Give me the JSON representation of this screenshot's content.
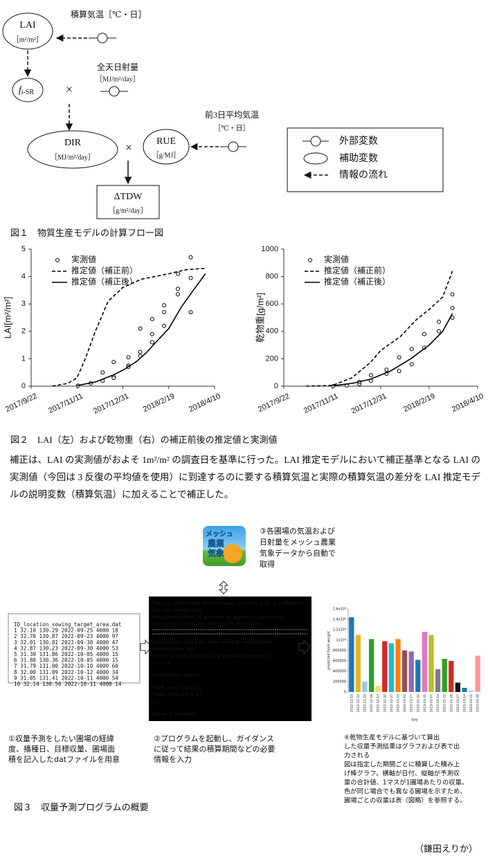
{
  "figure1": {
    "nodes": {
      "lai": {
        "label": "LAI",
        "unit": "［m²/m²］"
      },
      "fisr": {
        "label": "f",
        "subscript": "i-SR"
      },
      "dir": {
        "label": "DIR",
        "unit": "［MJ/m²/day］"
      },
      "rue": {
        "label": "RUE",
        "unit": "［g/MJ］"
      },
      "tdw": {
        "label": "ΔTDW",
        "unit": "［g/m²/day］"
      }
    },
    "inputs": {
      "temp_sum": "積算気温［℃・日］",
      "radiation": "全天日射量",
      "radiation_unit": "［MJ/m²/day］",
      "temp3": "前3日平均気温",
      "temp3_unit": "［℃・日］"
    },
    "times": "×",
    "legend": [
      "外部変数",
      "補助変数",
      "情報の流れ"
    ],
    "caption": "図１　物質生産モデルの計算フロー図"
  },
  "chart_data": [
    {
      "type": "line",
      "ylabel": "LAI[m²/m²]",
      "ylim": [
        0,
        5
      ],
      "yticks": [
        0,
        1,
        2,
        3,
        4,
        5
      ],
      "xlim": [
        "2017/9/22",
        "2018/4/10"
      ],
      "xticks": [
        "2017/9/22",
        "2017/11/11",
        "2017/12/31",
        "2018/2/19",
        "2018/4/10"
      ],
      "legend": "upper left",
      "grid": false,
      "series": [
        {
          "name": "実測値",
          "color": "#000",
          "marker": "circle",
          "line_style": "none",
          "x": [
            "2017/11/12",
            "2017/11/26",
            "2017/12/9",
            "2017/12/9",
            "2017/12/21",
            "2017/12/21",
            "2017/12/21",
            "2018/1/6",
            "2018/1/6",
            "2018/1/6",
            "2018/1/19",
            "2018/1/19",
            "2018/1/19",
            "2018/2/1",
            "2018/2/1",
            "2018/2/1",
            "2018/2/14",
            "2018/2/14",
            "2018/2/14",
            "2018/3/1",
            "2018/3/1",
            "2018/3/1",
            "2018/3/15",
            "2018/3/15",
            "2018/3/15"
          ],
          "values": [
            0.02,
            0.1,
            0.2,
            0.5,
            0.35,
            0.3,
            0.88,
            0.75,
            0.7,
            1.05,
            1.1,
            1.25,
            2.1,
            1.6,
            1.9,
            2.45,
            2.2,
            2.7,
            2.95,
            3.35,
            3.55,
            4.1,
            2.7,
            3.95,
            4.7
          ]
        },
        {
          "name": "推定値（補正前）",
          "color": "#000",
          "marker": "none",
          "line_style": "dashed",
          "x": [
            "2017/10/15",
            "2017/11/1",
            "2017/11/11",
            "2017/11/20",
            "2017/12/1",
            "2017/12/15",
            "2017/12/31",
            "2018/1/20",
            "2018/2/19",
            "2018/3/10",
            "2018/3/31"
          ],
          "values": [
            0,
            0.1,
            0.3,
            1,
            2,
            3.1,
            3.6,
            3.9,
            4.1,
            4.25,
            4.3
          ]
        },
        {
          "name": "推定値（補正後）",
          "color": "#000",
          "marker": "none",
          "line_style": "solid",
          "x": [
            "2017/11/11",
            "2017/12/1",
            "2017/12/20",
            "2018/1/1",
            "2018/1/15",
            "2018/1/25",
            "2018/2/5",
            "2018/2/19",
            "2018/3/5",
            "2018/3/20",
            "2018/3/31"
          ],
          "values": [
            0.02,
            0.15,
            0.4,
            0.6,
            0.9,
            1.2,
            1.6,
            2.1,
            2.9,
            3.6,
            4.1
          ]
        }
      ]
    },
    {
      "type": "line",
      "ylabel": "乾物重[g/m²]",
      "ylim": [
        0,
        1000
      ],
      "yticks": [
        0,
        200,
        400,
        600,
        800,
        1000
      ],
      "xlim": [
        "2017/9/22",
        "2018/4/10"
      ],
      "xticks": [
        "2017/9/22",
        "2017/11/11",
        "2017/12/31",
        "2018/2/19",
        "2018/4/10"
      ],
      "legend": "upper left",
      "grid": false,
      "series": [
        {
          "name": "実測値",
          "color": "#000",
          "marker": "circle",
          "line_style": "none",
          "x": [
            "2017/11/12",
            "2017/11/26",
            "2017/12/9",
            "2017/12/9",
            "2017/12/21",
            "2017/12/21",
            "2018/1/6",
            "2018/1/6",
            "2018/1/19",
            "2018/1/19",
            "2018/2/1",
            "2018/2/1",
            "2018/2/14",
            "2018/2/14",
            "2018/3/1",
            "2018/3/1",
            "2018/3/15",
            "2018/3/15",
            "2018/3/15"
          ],
          "values": [
            0,
            5,
            15,
            30,
            40,
            80,
            90,
            120,
            110,
            210,
            160,
            270,
            280,
            380,
            400,
            470,
            500,
            570,
            670
          ]
        },
        {
          "name": "推定値（補正前）",
          "color": "#000",
          "marker": "none",
          "line_style": "dashed",
          "x": [
            "2017/10/15",
            "2017/11/11",
            "2017/12/1",
            "2017/12/20",
            "2017/12/31",
            "2018/1/20",
            "2018/2/5",
            "2018/2/19",
            "2018/3/5",
            "2018/3/15"
          ],
          "values": [
            0,
            5,
            60,
            170,
            260,
            360,
            480,
            560,
            650,
            840
          ]
        },
        {
          "name": "推定値（補正後）",
          "color": "#000",
          "marker": "none",
          "line_style": "solid",
          "x": [
            "2017/11/11",
            "2017/12/1",
            "2017/12/20",
            "2018/1/10",
            "2018/1/31",
            "2018/2/19",
            "2018/3/5",
            "2018/3/15"
          ],
          "values": [
            2,
            20,
            50,
            110,
            200,
            300,
            400,
            530
          ]
        }
      ]
    },
    {
      "type": "bar",
      "ylabel": "predicted fresh weight",
      "xlabel": "day",
      "ylim": [
        0,
        1600000
      ],
      "yticks": [
        0,
        200000,
        400000,
        600000,
        800000,
        {
          "value": 1000000,
          "label": "1x10⁶"
        },
        {
          "value": 1200000,
          "label": "1.2x10⁶"
        },
        {
          "value": 1400000,
          "label": "1.4x10⁶"
        },
        {
          "value": 1600000,
          "label": "1.6x10⁶"
        }
      ],
      "categories": [
        "2022-11-15",
        "2022-11-22",
        "2022-11-29",
        "2022-12-06",
        "2022-12-13",
        "2022-12-20",
        "2022-12-27",
        "2023-01-03",
        "2023-01-10",
        "2023-01-17",
        "2023-01-24",
        "2023-01-31",
        "2023-02-07",
        "2023-02-14",
        "2023-02-21",
        "2023-02-28",
        "2023-03-07",
        "2023-03-14",
        "2023-03-21",
        "2023-03-28"
      ],
      "values": [
        1440000,
        1100000,
        200000,
        1020000,
        120000,
        980000,
        940000,
        1020000,
        800000,
        780000,
        620000,
        1160000,
        1100000,
        440000,
        640000,
        600000,
        180000,
        80000,
        30000,
        700000
      ],
      "colors": [
        "#1f77b4",
        "#e8b820",
        "#9ac8e8",
        "#2ca02c",
        "#f0e060",
        "#d62728",
        "#17becf",
        "#ff7f0e",
        "#8c564b",
        "#9467bd",
        "#1f77b4",
        "#e377c2",
        "#bcbd22",
        "#7f7f7f",
        "#2ca02c",
        "#d62728",
        "#111111",
        "#1f77b4",
        "#aec7e8",
        "#ff9896"
      ]
    }
  ],
  "figure2": {
    "caption": "図２　LAI（左）および乾物重（右）の補正前後の推定値と実測値",
    "paragraph": "補正は、LAI の実測値がおよそ 1m²/m² の調査日を基準に行った。LAI 推定モデルにおいて補正基準となる LAI の実測値（今回は 3 反復の平均値を使用）に到達するのに要する積算気温と実際の積算気温の差分を LAI 推定モデルの説明変数（積算気温）に加えることで補正した。"
  },
  "figure3": {
    "icon": [
      "メッシュ",
      "農業",
      "気象"
    ],
    "step3": [
      "③各圃場の気温および",
      "日射量をメッシュ農業",
      "気象データから自動で",
      "取得"
    ],
    "file": [
      "ID_location_sowing_target_area.dat",
      "1 32.10 130.29 2022-09-25 4000 18",
      "2 32.76 130.87 2022-09-23 4000 97",
      "3 32.01 130.81 2022-09-30 4000 47",
      "4 32.87 130.23 2022-09-30 4000 53",
      "5 31.30 131.86 2022-10-05 4000 15",
      "6 31.88 130.36 2022-10-05 4000 15",
      "7 31.79 131.00 2022-10-10 4000 60",
      "8 32.00 131.89 2022-10-12 4000 34",
      "9 31.05 131.41 2022-10-11 4000 54",
      "10 32.14 130.56 2022-10-11 4000 14"
    ],
    "console": [
      [
        "This is SukuSuku Hourensou, version 1.0. a software",
        "for the prediction",
        "and simulation of growth of spinach (Spinacia",
        "oleracea), built for Microsoft Windows...."
      ],
      [
        "How many days do you want to aggregate",
        "predictions for?",
        "Enter a time interval ( a positive integer ).",
        ">>> 7...."
      ],
      [
        "Prediction starts."
      ],
      [
        "TMP_mea (78,1,1)",
        "TMP_mea(15,1,1)",
        "...."
      ],
      [
        "Farm 1 finished."
      ]
    ],
    "step1": [
      "①収量予測をしたい圃場の経緯",
      "度、播種日、目標収量、圃場面",
      "積を記入したdatファイルを用意"
    ],
    "step2": [
      "②プログラムを起動し、ガイダンス",
      "に従って結果の積算期間などの必要",
      "情報を入力"
    ],
    "step4": [
      "④乾物生産モデルに基づいて算出",
      "した収量予測結果はグラフおよび表で出",
      "力される",
      "図は指定した期間ごとに積算した積み上",
      "げ棒グラフ。横軸が日付、縦軸が予測収",
      "量の合計値、1マスが1圃場あたりの収量。",
      "色が同じ場合でも異なる圃場を示すため、",
      "圃場ごとの収量は表（図略）を参照する。"
    ],
    "caption": "図３　収量予測プログラムの概要"
  },
  "author": "（鎌田えりか）"
}
